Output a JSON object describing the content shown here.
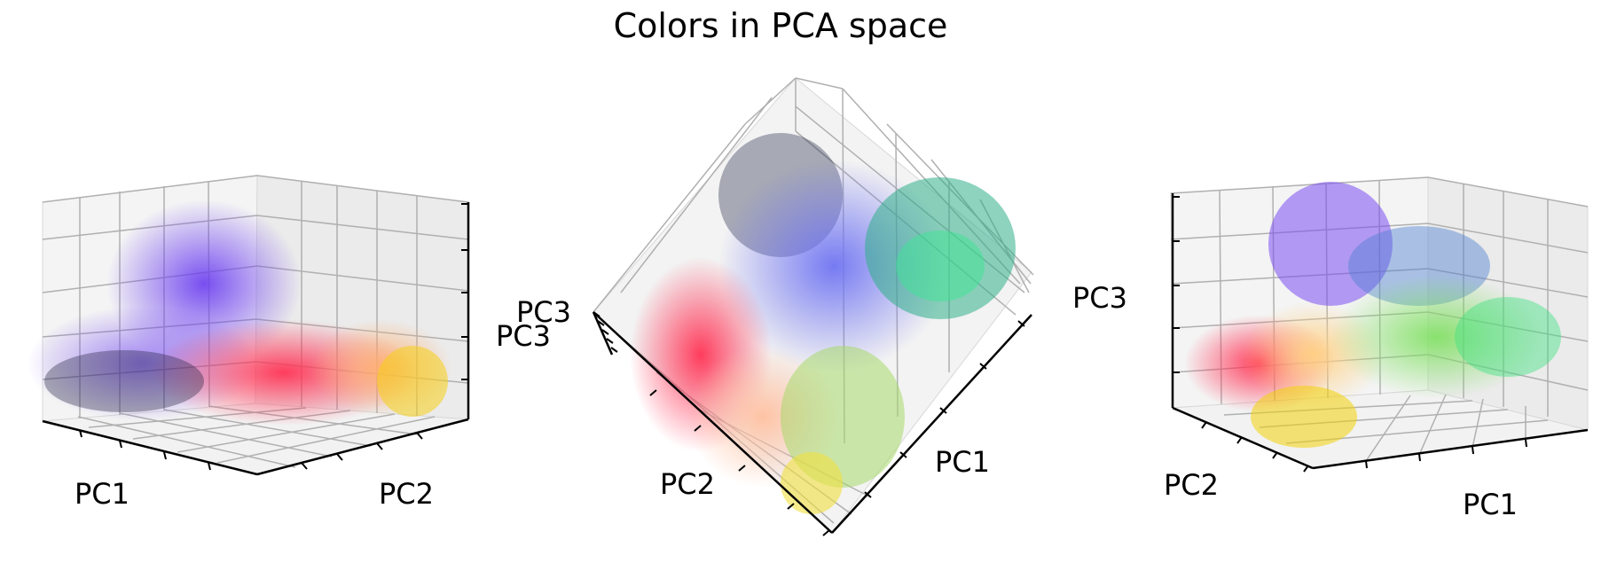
{
  "title": "Colors in PCA space",
  "chart_data": [
    {
      "type": "scatter",
      "view": "left",
      "projection": "3d",
      "xlabel": "PC1",
      "ylabel": "PC2",
      "zlabel": "PC3",
      "grid": true
    },
    {
      "type": "scatter",
      "view": "middle",
      "projection": "3d",
      "xlabel": "PC1",
      "ylabel": "PC2",
      "zlabel": "PC3",
      "grid": true
    },
    {
      "type": "scatter",
      "view": "right",
      "projection": "3d",
      "xlabel": "PC1",
      "ylabel": "PC2",
      "zlabel": "PC3",
      "grid": true
    }
  ]
}
